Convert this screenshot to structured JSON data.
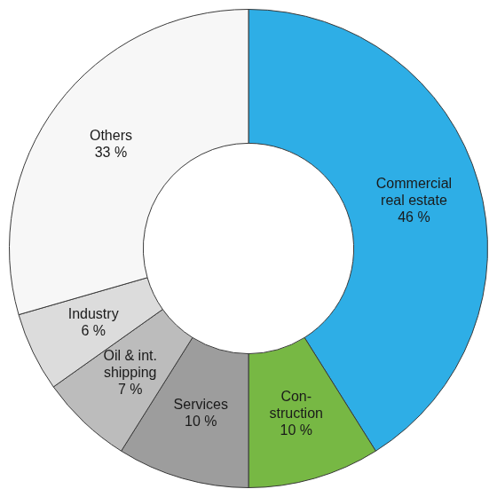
{
  "chart_data": {
    "type": "doughnut",
    "categories": [
      "Commercial\nreal estate",
      "Con-\nstruction",
      "Services",
      "Oil & int.\nshipping",
      "Industry",
      "Others"
    ],
    "values": [
      46,
      10,
      10,
      7,
      6,
      33
    ],
    "value_labels": [
      "46 %",
      "10 %",
      "10 %",
      "7 %",
      "6 %",
      "33 %"
    ],
    "colors": [
      "#2eaee6",
      "#77b844",
      "#9d9d9d",
      "#bcbcbc",
      "#dcdcdc",
      "#f7f7f7"
    ],
    "data_labels": true
  }
}
